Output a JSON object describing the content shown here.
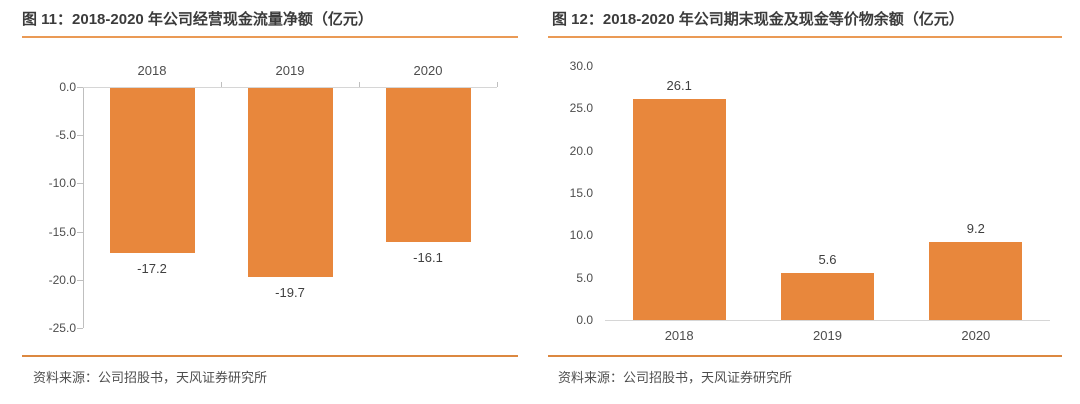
{
  "panels": [
    {
      "source": "资料来源：公司招股书，天风证券研究所"
    },
    {
      "source": "资料来源：公司招股书，天风证券研究所"
    }
  ],
  "colors": {
    "bar": "#E8873C",
    "title_rule": "#EA9A55",
    "source_rule": "#DC8840",
    "axis": "#BFBFBF",
    "baseline": "#D6D6D6"
  },
  "chart_data": [
    {
      "type": "bar",
      "title": "图 11：2018-2020 年公司经营现金流量净额（亿元）",
      "categories": [
        "2018",
        "2019",
        "2020"
      ],
      "values": [
        -17.2,
        -19.7,
        -16.1
      ],
      "data_labels": [
        "-17.2",
        "-19.7",
        "-16.1"
      ],
      "xlabel": "",
      "ylabel": "",
      "ylim": [
        -25,
        0
      ],
      "yticks": [
        "0.0",
        "-5.0",
        "-10.0",
        "-15.0",
        "-20.0",
        "-25.0"
      ],
      "grid": false,
      "legend": "none",
      "bar_color": "#E8873C"
    },
    {
      "type": "bar",
      "title": "图 12：2018-2020 年公司期末现金及现金等价物余额（亿元）",
      "categories": [
        "2018",
        "2019",
        "2020"
      ],
      "values": [
        26.1,
        5.6,
        9.2
      ],
      "data_labels": [
        "26.1",
        "5.6",
        "9.2"
      ],
      "xlabel": "",
      "ylabel": "",
      "ylim": [
        0,
        30
      ],
      "yticks": [
        "0.0",
        "5.0",
        "10.0",
        "15.0",
        "20.0",
        "25.0",
        "30.0"
      ],
      "grid": false,
      "legend": "none",
      "bar_color": "#E8873C"
    }
  ]
}
